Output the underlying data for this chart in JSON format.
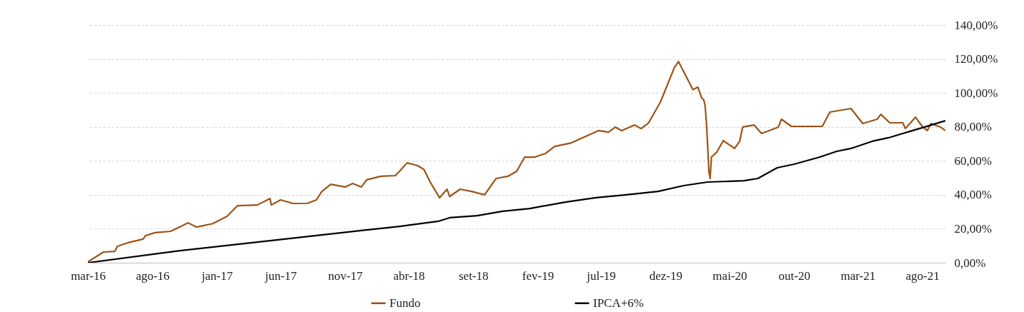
{
  "chart_data": {
    "type": "line",
    "xlim": [
      "2016-03-01",
      "2021-09-25"
    ],
    "xticks": [
      {
        "value": "2016-03",
        "label": "mar-16"
      },
      {
        "value": "2016-08",
        "label": "ago-16"
      },
      {
        "value": "2017-01",
        "label": "jan-17"
      },
      {
        "value": "2017-06",
        "label": "jun-17"
      },
      {
        "value": "2017-11",
        "label": "nov-17"
      },
      {
        "value": "2018-04",
        "label": "abr-18"
      },
      {
        "value": "2018-09",
        "label": "set-18"
      },
      {
        "value": "2019-02",
        "label": "fev-19"
      },
      {
        "value": "2019-07",
        "label": "jul-19"
      },
      {
        "value": "2019-12",
        "label": "dez-19"
      },
      {
        "value": "2020-05",
        "label": "mai-20"
      },
      {
        "value": "2020-10",
        "label": "out-20"
      },
      {
        "value": "2021-03",
        "label": "mar-21"
      },
      {
        "value": "2021-08",
        "label": "ago-21"
      }
    ],
    "y2lim": [
      0,
      140
    ],
    "y2ticks": [
      {
        "value": 0,
        "label": "0,00%"
      },
      {
        "value": 20,
        "label": "20,00%"
      },
      {
        "value": 40,
        "label": "40,00%"
      },
      {
        "value": 60,
        "label": "60,00%"
      },
      {
        "value": 80,
        "label": "80,00%"
      },
      {
        "value": 100,
        "label": "100,00%"
      },
      {
        "value": 120,
        "label": "120,00%"
      },
      {
        "value": 140,
        "label": "140,00%"
      }
    ],
    "grid": "y",
    "legend": "bottom",
    "series": [
      {
        "name": "Fundo",
        "color": "#9c5316",
        "axis": "y2",
        "x": [
          "2016-03-01",
          "2016-04-07",
          "2016-05-04",
          "2016-05-10",
          "2016-06-04",
          "2016-07-10",
          "2016-07-16",
          "2016-08-07",
          "2016-09-13",
          "2016-10-25",
          "2016-11-13",
          "2016-12-22",
          "2017-01-25",
          "2017-02-19",
          "2017-04-07",
          "2017-05-07",
          "2017-05-10",
          "2017-06-01",
          "2017-07-01",
          "2017-08-04",
          "2017-08-25",
          "2017-09-07",
          "2017-09-28",
          "2017-11-01",
          "2017-11-19",
          "2017-12-10",
          "2017-12-22",
          "2018-01-25",
          "2018-02-28",
          "2018-03-10",
          "2018-03-28",
          "2018-04-22",
          "2018-05-07",
          "2018-05-22",
          "2018-06-13",
          "2018-07-01",
          "2018-07-07",
          "2018-08-01",
          "2018-08-28",
          "2018-09-28",
          "2018-10-25",
          "2018-11-22",
          "2018-12-13",
          "2019-01-01",
          "2019-01-25",
          "2019-02-19",
          "2019-03-13",
          "2019-04-22",
          "2019-05-22",
          "2019-06-25",
          "2019-07-19",
          "2019-08-04",
          "2019-08-19",
          "2019-09-19",
          "2019-10-04",
          "2019-10-22",
          "2019-11-19",
          "2019-12-22",
          "2020-01-01",
          "2020-01-19",
          "2020-02-04",
          "2020-02-16",
          "2020-02-25",
          "2020-03-01",
          "2020-03-04",
          "2020-03-07",
          "2020-03-10",
          "2020-03-13",
          "2020-03-16",
          "2020-03-19",
          "2020-04-01",
          "2020-04-16",
          "2020-05-13",
          "2020-05-25",
          "2020-06-01",
          "2020-06-28",
          "2020-07-16",
          "2020-08-25",
          "2020-09-01",
          "2020-09-25",
          "2020-10-28",
          "2020-12-07",
          "2020-12-25",
          "2021-02-13",
          "2021-03-13",
          "2021-04-16",
          "2021-04-25",
          "2021-05-16",
          "2021-06-16",
          "2021-06-22",
          "2021-07-16",
          "2021-08-01",
          "2021-08-13",
          "2021-08-22",
          "2021-09-13",
          "2021-09-25"
        ],
        "values": [
          0.5,
          6.3,
          6.7,
          9.7,
          11.8,
          13.9,
          16,
          17.7,
          18.5,
          23.5,
          21,
          23,
          27.3,
          33.6,
          34,
          37.8,
          34,
          37,
          34.9,
          35,
          37,
          42,
          46.2,
          44.6,
          46.7,
          44.6,
          48.8,
          50.9,
          51.3,
          53.8,
          58.8,
          57.2,
          55,
          47.5,
          38.3,
          43.3,
          39,
          43.3,
          42,
          40,
          49.6,
          50.9,
          53.8,
          62.2,
          62.2,
          64.3,
          68.5,
          70.6,
          74,
          77.8,
          76.9,
          79.9,
          77.8,
          81.1,
          79,
          82.4,
          94.6,
          114.8,
          118.5,
          109.7,
          102,
          103.4,
          97,
          95.8,
          92.5,
          83.2,
          69.4,
          53.8,
          49.6,
          62.2,
          65.2,
          71.9,
          67.3,
          71.5,
          79.9,
          81.1,
          76.1,
          79.9,
          84.5,
          80.3,
          80.3,
          80.3,
          88.7,
          90.8,
          82,
          84.5,
          87.4,
          82.4,
          82.4,
          79,
          85.7,
          80.3,
          77.8,
          82,
          79.9,
          77.8
        ]
      },
      {
        "name": "IPCA+6%",
        "color": "#000000",
        "axis": "y2",
        "x": [
          "2016-03-01",
          "2016-09-22",
          "2017-07-07",
          "2018-03-10",
          "2018-06-10",
          "2018-07-07",
          "2018-09-10",
          "2018-11-10",
          "2019-01-13",
          "2019-04-07",
          "2019-06-19",
          "2019-08-25",
          "2019-11-13",
          "2020-01-13",
          "2020-03-10",
          "2020-06-04",
          "2020-07-07",
          "2020-08-22",
          "2020-10-01",
          "2020-12-01",
          "2021-01-10",
          "2021-02-13",
          "2021-04-04",
          "2021-05-13",
          "2021-07-25",
          "2021-09-25"
        ],
        "values": [
          0,
          6.7,
          14.7,
          21.4,
          24.4,
          26.5,
          27.7,
          30.3,
          31.9,
          35.7,
          38.3,
          39.9,
          42,
          45.4,
          47.5,
          48.3,
          49.6,
          55.9,
          58,
          62.2,
          65.6,
          67.3,
          71.5,
          73.6,
          79,
          83.6
        ]
      }
    ]
  }
}
